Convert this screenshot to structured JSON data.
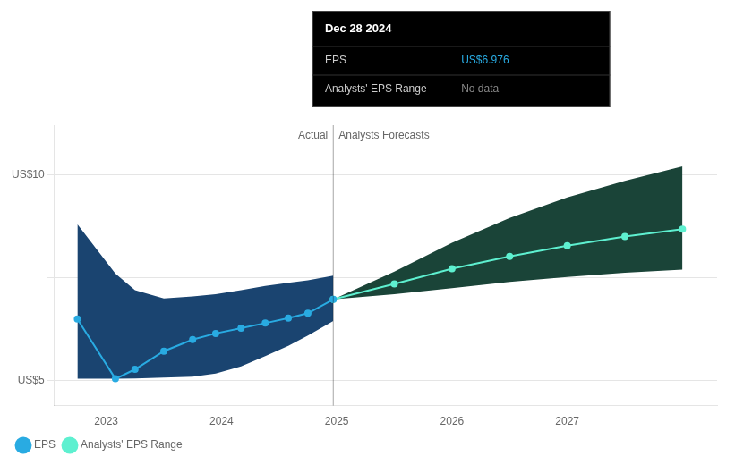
{
  "chart_data": {
    "type": "line",
    "xlim": [
      2022.55,
      2028.3
    ],
    "xticks": [
      2023,
      2024,
      2025,
      2026,
      2027
    ],
    "ylim": [
      4.4,
      11.2
    ],
    "yticks": [
      {
        "value": 5.0,
        "label": "US$5"
      },
      {
        "value": 7.5,
        "label": null
      },
      {
        "value": 10.0,
        "label": "US$10"
      }
    ],
    "grid": "y",
    "legend": "bottom",
    "series": [
      {
        "type": "band",
        "color": "#1a4470",
        "x": [
          2022.75,
          2023.08,
          2023.25,
          2023.5,
          2023.75,
          2023.95,
          2024.17,
          2024.38,
          2024.58,
          2024.75,
          2024.97
        ],
        "upper": [
          8.8,
          7.6,
          7.2,
          7.0,
          7.05,
          7.1,
          7.2,
          7.3,
          7.38,
          7.44,
          7.55
        ],
        "lower": [
          5.05,
          5.05,
          5.06,
          5.08,
          5.1,
          5.18,
          5.35,
          5.6,
          5.85,
          6.1,
          6.45
        ]
      },
      {
        "type": "band",
        "color": "#1a4438",
        "x": [
          2024.97,
          2025.5,
          2026.0,
          2026.5,
          2027.0,
          2027.5,
          2028.0
        ],
        "upper": [
          6.976,
          7.65,
          8.35,
          8.95,
          9.45,
          9.85,
          10.2
        ],
        "lower": [
          6.976,
          7.1,
          7.25,
          7.4,
          7.52,
          7.62,
          7.7
        ]
      },
      {
        "name": "EPS",
        "color": "#29abe2",
        "marker": "o",
        "x": [
          2022.75,
          2023.08,
          2023.25,
          2023.5,
          2023.75,
          2023.95,
          2024.17,
          2024.38,
          2024.58,
          2024.75,
          2024.97
        ],
        "values": [
          6.5,
          5.05,
          5.28,
          5.72,
          6.0,
          6.15,
          6.28,
          6.4,
          6.52,
          6.64,
          6.976
        ]
      },
      {
        "name": "Analysts' EPS Range",
        "color": "#5ef0d0",
        "marker": "o",
        "x": [
          2024.97,
          2025.5,
          2026.0,
          2026.5,
          2027.0,
          2027.5,
          2028.0
        ],
        "values": [
          6.976,
          7.35,
          7.72,
          8.02,
          8.28,
          8.5,
          8.68
        ]
      }
    ],
    "annotations": [
      {
        "type": "vline",
        "x": 2024.97
      },
      {
        "text": "Actual",
        "x": 2024.97,
        "align": "right"
      },
      {
        "text": "Analysts Forecasts",
        "x": 2024.97,
        "align": "left"
      }
    ],
    "tooltip": {
      "title": "Dec 28 2024",
      "rows": [
        {
          "label": "EPS",
          "value": "US$6.976",
          "color": "#29abe2"
        },
        {
          "label": "Analysts' EPS Range",
          "value": "No data",
          "color": "#888888"
        }
      ]
    }
  }
}
